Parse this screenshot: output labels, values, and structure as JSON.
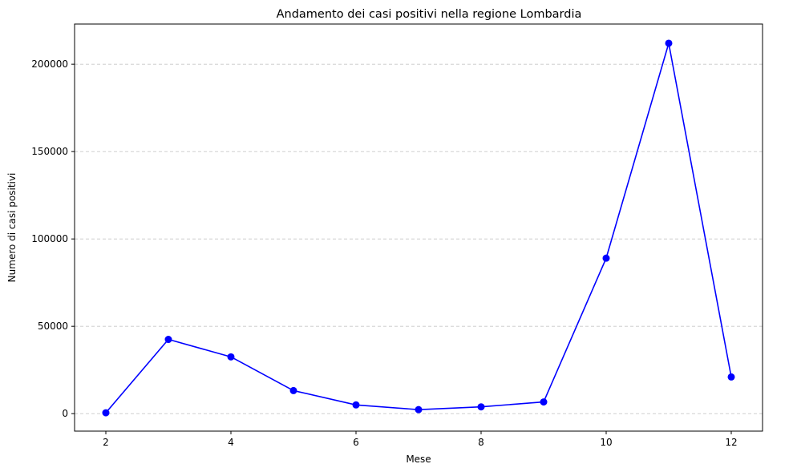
{
  "chart_data": {
    "type": "line",
    "title": "Andamento dei casi positivi nella regione Lombardia",
    "xlabel": "Mese",
    "ylabel": "Numero di casi positivi",
    "xlim": [
      1.5,
      12.5
    ],
    "ylim": [
      -10000,
      223000
    ],
    "x_ticks": [
      2,
      4,
      6,
      8,
      10,
      12
    ],
    "y_ticks": [
      0,
      50000,
      100000,
      150000,
      200000
    ],
    "grid": {
      "y": true,
      "x": false,
      "style": "dashed"
    },
    "series": [
      {
        "color": "#0000ff",
        "marker": "circle",
        "x": [
          2,
          3,
          4,
          5,
          6,
          7,
          8,
          9,
          10,
          11,
          12
        ],
        "y": [
          500,
          42500,
          32500,
          13200,
          5000,
          2300,
          3900,
          6700,
          89000,
          212000,
          21000
        ]
      }
    ]
  }
}
